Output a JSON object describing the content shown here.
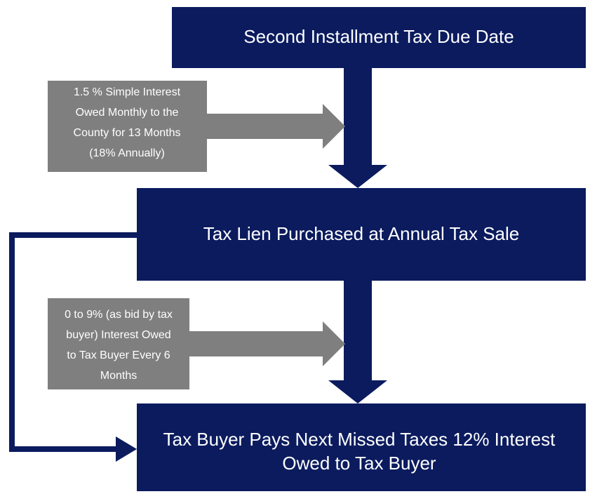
{
  "nodes": [
    {
      "lines": [
        "Second Installment Tax Due Date"
      ]
    },
    {
      "lines": [
        "Tax Lien Purchased at Annual Tax Sale"
      ]
    },
    {
      "lines": [
        "Tax Buyer Pays Next Missed Taxes 12% Interest",
        "Owed to Tax Buyer"
      ]
    }
  ],
  "notes": [
    {
      "lines": [
        "1.5 % Simple Interest",
        "Owed Monthly to the",
        "County for 13 Months",
        "(18% Annually)"
      ]
    },
    {
      "lines": [
        "0 to 9% (as bid by tax",
        "buyer) Interest Owed",
        "to Tax Buyer Every 6",
        "Months"
      ]
    }
  ]
}
